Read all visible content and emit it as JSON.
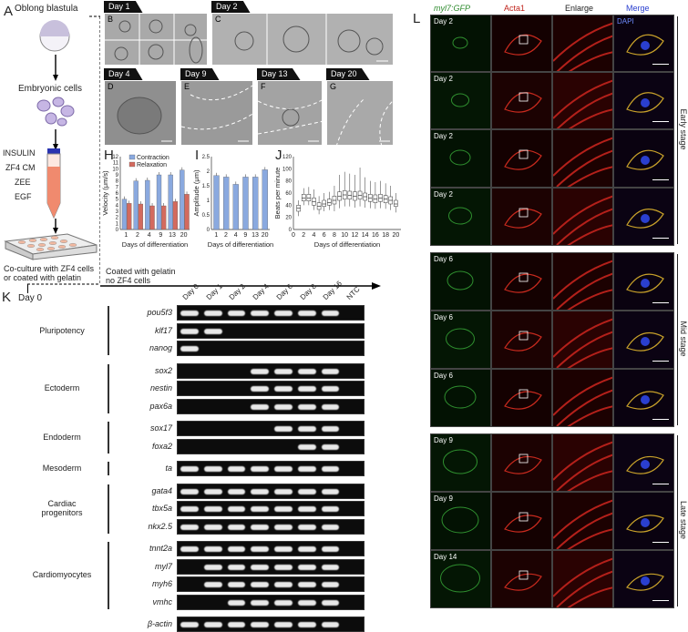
{
  "panels": {
    "A": "A",
    "B": "B",
    "C": "C",
    "D": "D",
    "E": "E",
    "F": "F",
    "G": "G",
    "H": "H",
    "I": "I",
    "J": "J",
    "K": "K",
    "L": "L"
  },
  "panel_a": {
    "oblong_blastula": "Oblong blastula",
    "embryonic_cells": "Embryonic cells",
    "insulin": "INSULIN",
    "zf4cm": "ZF4 CM",
    "zee": "ZEE",
    "egf": "EGF",
    "coculture": "Co-culture with ZF4 cells",
    "coated": "or coated with gelatin",
    "day0": "Day 0",
    "timeline_label_1": "Coated with gelatin",
    "timeline_label_2": "no ZF4 cells"
  },
  "micro_days": {
    "b": "Day 1",
    "c": "Day 2",
    "d": "Day 4",
    "e": "Day 9",
    "f": "Day 13",
    "g": "Day 20"
  },
  "chart_data": [
    {
      "type": "bar",
      "panel": "H",
      "categories": [
        "1",
        "2",
        "4",
        "9",
        "13",
        "20"
      ],
      "series": [
        {
          "name": "Contraction",
          "color": "#8aa9df",
          "values": [
            5.0,
            8.0,
            8.1,
            9.0,
            9.0,
            9.8
          ]
        },
        {
          "name": "Relaxation",
          "color": "#d36a5e",
          "values": [
            4.3,
            4.2,
            3.9,
            3.9,
            4.6,
            5.8
          ]
        }
      ],
      "xlabel": "Days of differentiation",
      "ylabel": "Velocity (μm/s)",
      "ylim": [
        0,
        12
      ],
      "yticks": [
        0,
        1,
        2,
        3,
        4,
        5,
        6,
        7,
        8,
        9,
        10,
        11,
        12
      ]
    },
    {
      "type": "bar",
      "panel": "I",
      "categories": [
        "1",
        "2",
        "4",
        "9",
        "13",
        "20"
      ],
      "series": [
        {
          "color": "#8aa9df",
          "values": [
            1.85,
            1.8,
            1.55,
            1.8,
            1.8,
            2.05
          ]
        }
      ],
      "xlabel": "Days of differentiation",
      "ylabel": "Amplitude (μm)",
      "ylim": [
        0,
        2.5
      ],
      "yticks": [
        0,
        0.5,
        1,
        1.5,
        2,
        2.5
      ]
    },
    {
      "type": "box",
      "panel": "J",
      "x": [
        1,
        2,
        3,
        4,
        5,
        6,
        7,
        8,
        9,
        10,
        11,
        12,
        13,
        14,
        15,
        16,
        17,
        18,
        19,
        20
      ],
      "medians": [
        35,
        52,
        52,
        46,
        38,
        42,
        44,
        48,
        55,
        57,
        56,
        55,
        56,
        54,
        52,
        50,
        52,
        50,
        48,
        42
      ],
      "q1": [
        30,
        47,
        47,
        40,
        33,
        38,
        40,
        42,
        48,
        50,
        50,
        48,
        50,
        48,
        46,
        44,
        46,
        44,
        42,
        38
      ],
      "q3": [
        40,
        58,
        58,
        52,
        44,
        48,
        50,
        55,
        62,
        64,
        63,
        62,
        63,
        60,
        58,
        57,
        58,
        56,
        54,
        48
      ],
      "lo": [
        22,
        40,
        40,
        32,
        25,
        30,
        32,
        30,
        35,
        38,
        38,
        36,
        38,
        36,
        35,
        34,
        35,
        34,
        32,
        28
      ],
      "hi": [
        48,
        68,
        70,
        66,
        55,
        60,
        62,
        72,
        90,
        95,
        92,
        90,
        102,
        86,
        80,
        78,
        80,
        76,
        72,
        60
      ],
      "xlabel": "Days of differentiation",
      "ylabel": "Beats per minute",
      "ylim": [
        0,
        120
      ],
      "yticks": [
        0,
        20,
        40,
        60,
        80,
        100,
        120
      ],
      "xticks": [
        0,
        2,
        4,
        6,
        8,
        10,
        12,
        14,
        16,
        18,
        20
      ]
    }
  ],
  "gel": {
    "lanes": [
      "Day 0",
      "Day 1",
      "Day 2",
      "Day 4",
      "Day 6",
      "Day 8",
      "Day 16",
      "NTC"
    ],
    "rows": [
      {
        "gene": "pou5f3",
        "bands": [
          1,
          1,
          1,
          1,
          1,
          1,
          1,
          0
        ],
        "cat": 0
      },
      {
        "gene": "klf17",
        "bands": [
          1,
          1,
          0,
          0,
          0,
          0,
          0,
          0
        ],
        "cat": 0
      },
      {
        "gene": "nanog",
        "bands": [
          1,
          0,
          0,
          0,
          0,
          0,
          0,
          0
        ],
        "cat": 0
      },
      {
        "gene": "sox2",
        "bands": [
          0,
          0,
          0,
          1,
          1,
          1,
          1,
          0
        ],
        "cat": 1
      },
      {
        "gene": "nestin",
        "bands": [
          0,
          0,
          0,
          1,
          1,
          1,
          1,
          0
        ],
        "cat": 1
      },
      {
        "gene": "pax6a",
        "bands": [
          0,
          0,
          0,
          1,
          1,
          1,
          1,
          0
        ],
        "cat": 1
      },
      {
        "gene": "sox17",
        "bands": [
          0,
          0,
          0,
          0,
          1,
          1,
          1,
          0
        ],
        "cat": 2
      },
      {
        "gene": "foxa2",
        "bands": [
          0,
          0,
          0,
          0,
          0,
          1,
          1,
          0
        ],
        "cat": 2
      },
      {
        "gene": "ta",
        "bands": [
          1,
          1,
          1,
          1,
          1,
          1,
          1,
          0
        ],
        "cat": 3
      },
      {
        "gene": "gata4",
        "bands": [
          1,
          1,
          1,
          1,
          1,
          1,
          1,
          0
        ],
        "cat": 4
      },
      {
        "gene": "tbx5a",
        "bands": [
          1,
          1,
          1,
          1,
          1,
          1,
          1,
          0
        ],
        "cat": 4
      },
      {
        "gene": "nkx2.5",
        "bands": [
          1,
          1,
          1,
          1,
          1,
          1,
          1,
          0
        ],
        "cat": 4
      },
      {
        "gene": "tnnt2a",
        "bands": [
          1,
          1,
          1,
          1,
          1,
          1,
          1,
          0
        ],
        "cat": 5
      },
      {
        "gene": "myl7",
        "bands": [
          0,
          1,
          1,
          1,
          1,
          1,
          1,
          0
        ],
        "cat": 5
      },
      {
        "gene": "myh6",
        "bands": [
          0,
          1,
          1,
          1,
          1,
          1,
          1,
          0
        ],
        "cat": 5
      },
      {
        "gene": "vmhc",
        "bands": [
          0,
          0,
          1,
          1,
          1,
          1,
          1,
          0
        ],
        "cat": 5
      },
      {
        "gene": "β-actin",
        "bands": [
          1,
          1,
          1,
          1,
          1,
          1,
          1,
          0
        ],
        "cat": 6
      }
    ],
    "categories": [
      "Pluripotency",
      "Ectoderm",
      "Endoderm",
      "Mesoderm",
      "Cardiac\nprogenitors",
      "Cardiomyocytes",
      ""
    ]
  },
  "fluor": {
    "headers": [
      "myl7:GFP",
      "Acta1",
      "Enlarge",
      "Merge"
    ],
    "header_colors": [
      "#2e8b2e",
      "#c0241c",
      "#222222",
      "#2a3fcf"
    ],
    "dapi": "DAPI",
    "rows": [
      {
        "day": "Day 2"
      },
      {
        "day": "Day 2"
      },
      {
        "day": "Day 2"
      },
      {
        "day": "Day 2"
      },
      {
        "day": "Day 6"
      },
      {
        "day": "Day 6"
      },
      {
        "day": "Day 6"
      },
      {
        "day": "Day 9"
      },
      {
        "day": "Day 9"
      },
      {
        "day": "Day 14"
      }
    ],
    "stages": [
      "Early stage",
      "Mid stage",
      "Late stage"
    ]
  }
}
